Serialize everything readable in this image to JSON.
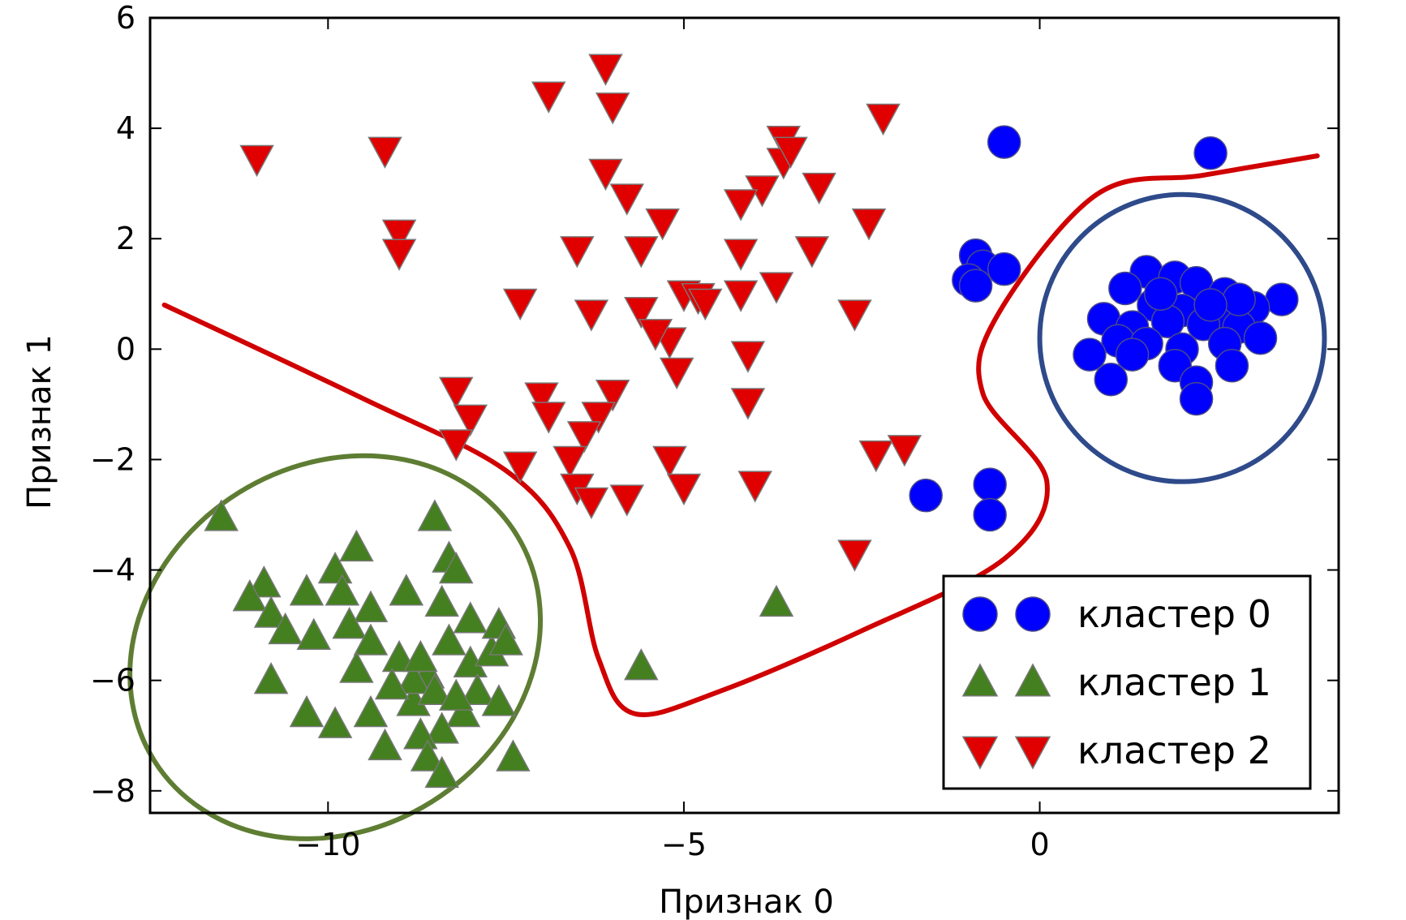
{
  "chart_data": {
    "type": "scatter",
    "xlabel": "Признак 0",
    "ylabel": "Признак 1",
    "xlim": [
      -12.5,
      4.2
    ],
    "ylim": [
      -8.4,
      6.0
    ],
    "xticks": [
      -10,
      -5,
      0
    ],
    "xtick_labels": [
      "−10",
      "−5",
      "0"
    ],
    "yticks": [
      -8,
      -6,
      -4,
      -2,
      0,
      2,
      4,
      6
    ],
    "ytick_labels": [
      "−8",
      "−6",
      "−4",
      "−2",
      "0",
      "2",
      "4",
      "6"
    ],
    "grid": false,
    "legend_position": "lower-right",
    "series": [
      {
        "name": "кластер 0",
        "marker": "circle",
        "color": "#0000ff",
        "points": [
          [
            -0.5,
            3.75
          ],
          [
            2.4,
            3.55
          ],
          [
            -0.9,
            1.7
          ],
          [
            -0.8,
            1.5
          ],
          [
            -1.0,
            1.25
          ],
          [
            -0.5,
            1.45
          ],
          [
            -0.9,
            1.15
          ],
          [
            -1.6,
            -2.65
          ],
          [
            -0.7,
            -2.45
          ],
          [
            -0.7,
            -3.0
          ],
          [
            1.5,
            1.4
          ],
          [
            1.9,
            1.3
          ],
          [
            2.2,
            1.2
          ],
          [
            2.6,
            1.0
          ],
          [
            3.4,
            0.9
          ],
          [
            1.2,
            1.1
          ],
          [
            0.9,
            0.55
          ],
          [
            1.6,
            0.8
          ],
          [
            2.0,
            0.7
          ],
          [
            2.5,
            0.6
          ],
          [
            3.0,
            0.75
          ],
          [
            1.3,
            0.4
          ],
          [
            1.8,
            0.5
          ],
          [
            2.3,
            0.45
          ],
          [
            2.8,
            0.4
          ],
          [
            3.1,
            0.2
          ],
          [
            1.1,
            0.15
          ],
          [
            1.5,
            0.1
          ],
          [
            2.0,
            0.0
          ],
          [
            2.6,
            0.1
          ],
          [
            0.7,
            -0.1
          ],
          [
            1.3,
            -0.1
          ],
          [
            1.9,
            -0.3
          ],
          [
            2.7,
            -0.3
          ],
          [
            1.0,
            -0.55
          ],
          [
            2.2,
            -0.6
          ],
          [
            2.2,
            -0.9
          ],
          [
            2.8,
            0.9
          ],
          [
            1.7,
            1.0
          ],
          [
            2.4,
            0.8
          ]
        ]
      },
      {
        "name": "кластер 1",
        "marker": "triangle-up",
        "color": "#44801f",
        "points": [
          [
            -11.5,
            -3.05
          ],
          [
            -8.5,
            -3.05
          ],
          [
            -10.9,
            -4.25
          ],
          [
            -11.1,
            -4.5
          ],
          [
            -10.8,
            -4.8
          ],
          [
            -10.6,
            -5.1
          ],
          [
            -10.3,
            -4.4
          ],
          [
            -10.2,
            -5.2
          ],
          [
            -9.9,
            -4.0
          ],
          [
            -9.6,
            -3.6
          ],
          [
            -9.8,
            -4.4
          ],
          [
            -9.4,
            -4.7
          ],
          [
            -9.7,
            -5.0
          ],
          [
            -9.4,
            -5.3
          ],
          [
            -9.6,
            -5.8
          ],
          [
            -10.8,
            -6.0
          ],
          [
            -10.3,
            -6.6
          ],
          [
            -9.9,
            -6.8
          ],
          [
            -9.4,
            -6.6
          ],
          [
            -9.2,
            -7.2
          ],
          [
            -8.8,
            -6.4
          ],
          [
            -8.6,
            -5.9
          ],
          [
            -8.9,
            -4.4
          ],
          [
            -8.4,
            -4.6
          ],
          [
            -8.3,
            -3.8
          ],
          [
            -8.2,
            -4.0
          ],
          [
            -8.0,
            -4.9
          ],
          [
            -8.3,
            -5.3
          ],
          [
            -8.0,
            -5.7
          ],
          [
            -7.9,
            -6.2
          ],
          [
            -7.7,
            -5.5
          ],
          [
            -7.6,
            -5.0
          ],
          [
            -7.5,
            -5.3
          ],
          [
            -8.1,
            -6.6
          ],
          [
            -8.4,
            -6.9
          ],
          [
            -8.7,
            -7.0
          ],
          [
            -8.6,
            -7.4
          ],
          [
            -8.4,
            -7.7
          ],
          [
            -7.6,
            -6.4
          ],
          [
            -7.4,
            -7.4
          ],
          [
            -9.0,
            -5.6
          ],
          [
            -8.8,
            -6.0
          ],
          [
            -8.5,
            -6.2
          ],
          [
            -8.2,
            -6.3
          ],
          [
            -9.1,
            -6.1
          ],
          [
            -8.7,
            -5.6
          ],
          [
            -3.7,
            -4.6
          ],
          [
            -5.6,
            -5.75
          ]
        ]
      },
      {
        "name": "кластер 2",
        "marker": "triangle-down",
        "color": "#e00000",
        "points": [
          [
            -6.1,
            5.1
          ],
          [
            -6.9,
            4.6
          ],
          [
            -6.0,
            4.4
          ],
          [
            -2.2,
            4.2
          ],
          [
            -11.0,
            3.45
          ],
          [
            -9.2,
            3.6
          ],
          [
            -3.6,
            3.8
          ],
          [
            -3.6,
            3.4
          ],
          [
            -3.5,
            3.6
          ],
          [
            -6.1,
            3.2
          ],
          [
            -5.8,
            2.75
          ],
          [
            -3.9,
            2.9
          ],
          [
            -3.1,
            2.95
          ],
          [
            -4.2,
            2.65
          ],
          [
            -2.4,
            2.3
          ],
          [
            -5.3,
            2.3
          ],
          [
            -9.0,
            2.1
          ],
          [
            -9.0,
            1.75
          ],
          [
            -6.5,
            1.8
          ],
          [
            -5.6,
            1.8
          ],
          [
            -4.2,
            1.75
          ],
          [
            -3.2,
            1.8
          ],
          [
            -7.3,
            0.85
          ],
          [
            -6.3,
            0.65
          ],
          [
            -5.6,
            0.7
          ],
          [
            -5.0,
            1.0
          ],
          [
            -4.8,
            0.95
          ],
          [
            -4.2,
            1.0
          ],
          [
            -3.7,
            1.15
          ],
          [
            -2.6,
            0.65
          ],
          [
            -5.2,
            0.15
          ],
          [
            -4.7,
            0.85
          ],
          [
            -4.1,
            -0.1
          ],
          [
            -5.4,
            0.3
          ],
          [
            -8.2,
            -0.75
          ],
          [
            -7.0,
            -0.85
          ],
          [
            -6.0,
            -0.8
          ],
          [
            -5.1,
            -0.4
          ],
          [
            -4.1,
            -0.95
          ],
          [
            -8.0,
            -1.25
          ],
          [
            -8.2,
            -1.7
          ],
          [
            -6.9,
            -1.2
          ],
          [
            -6.2,
            -1.2
          ],
          [
            -6.4,
            -1.55
          ],
          [
            -6.6,
            -2.0
          ],
          [
            -7.3,
            -2.1
          ],
          [
            -6.5,
            -2.5
          ],
          [
            -6.3,
            -2.75
          ],
          [
            -5.8,
            -2.7
          ],
          [
            -5.2,
            -2.0
          ],
          [
            -4.0,
            -2.45
          ],
          [
            -5.0,
            -2.5
          ],
          [
            -2.3,
            -1.9
          ],
          [
            -1.9,
            -1.8
          ],
          [
            -2.6,
            -3.7
          ]
        ]
      }
    ],
    "annotations": [
      {
        "shape": "ellipse",
        "color": "#2e4a8b",
        "cx": 2.0,
        "cy": 0.2,
        "rx": 2.0,
        "ry": 2.6,
        "around": "кластер 0"
      },
      {
        "shape": "ellipse",
        "color": "#5e7d33",
        "cx": -9.9,
        "cy": -5.4,
        "rx": 3.0,
        "ry": 3.3,
        "rotation_deg": 32,
        "around": "кластер 1"
      },
      {
        "shape": "curve",
        "color": "#d00000",
        "points": [
          [
            -12.3,
            0.8
          ],
          [
            -9.5,
            -0.9
          ],
          [
            -7.5,
            -2.2
          ],
          [
            -6.6,
            -3.6
          ],
          [
            -6.2,
            -5.6
          ],
          [
            -5.7,
            -6.6
          ],
          [
            -4.5,
            -6.2
          ],
          [
            -2.5,
            -5.1
          ],
          [
            -0.5,
            -3.8
          ],
          [
            0.1,
            -2.4
          ],
          [
            -0.8,
            -0.8
          ],
          [
            -0.6,
            0.6
          ],
          [
            0.8,
            2.8
          ],
          [
            2.3,
            3.15
          ],
          [
            3.9,
            3.5
          ]
        ]
      }
    ]
  }
}
